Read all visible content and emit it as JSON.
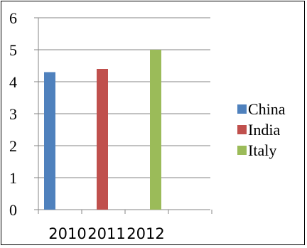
{
  "chart_data": {
    "type": "bar",
    "categories": [
      "2010",
      "2011",
      "2012"
    ],
    "series": [
      {
        "name": "China",
        "color": "#4f81bd",
        "values": [
          4.3,
          null,
          null
        ]
      },
      {
        "name": "India",
        "color": "#c0504d",
        "values": [
          null,
          4.4,
          null
        ]
      },
      {
        "name": "Italy",
        "color": "#9bbb59",
        "values": [
          null,
          null,
          5.0
        ]
      }
    ],
    "title": "",
    "xlabel": "",
    "ylabel": "",
    "ylim": [
      0,
      6
    ],
    "yticks": [
      "0",
      "1",
      "2",
      "3",
      "4",
      "5",
      "6"
    ],
    "grid": true,
    "legend": "right"
  }
}
